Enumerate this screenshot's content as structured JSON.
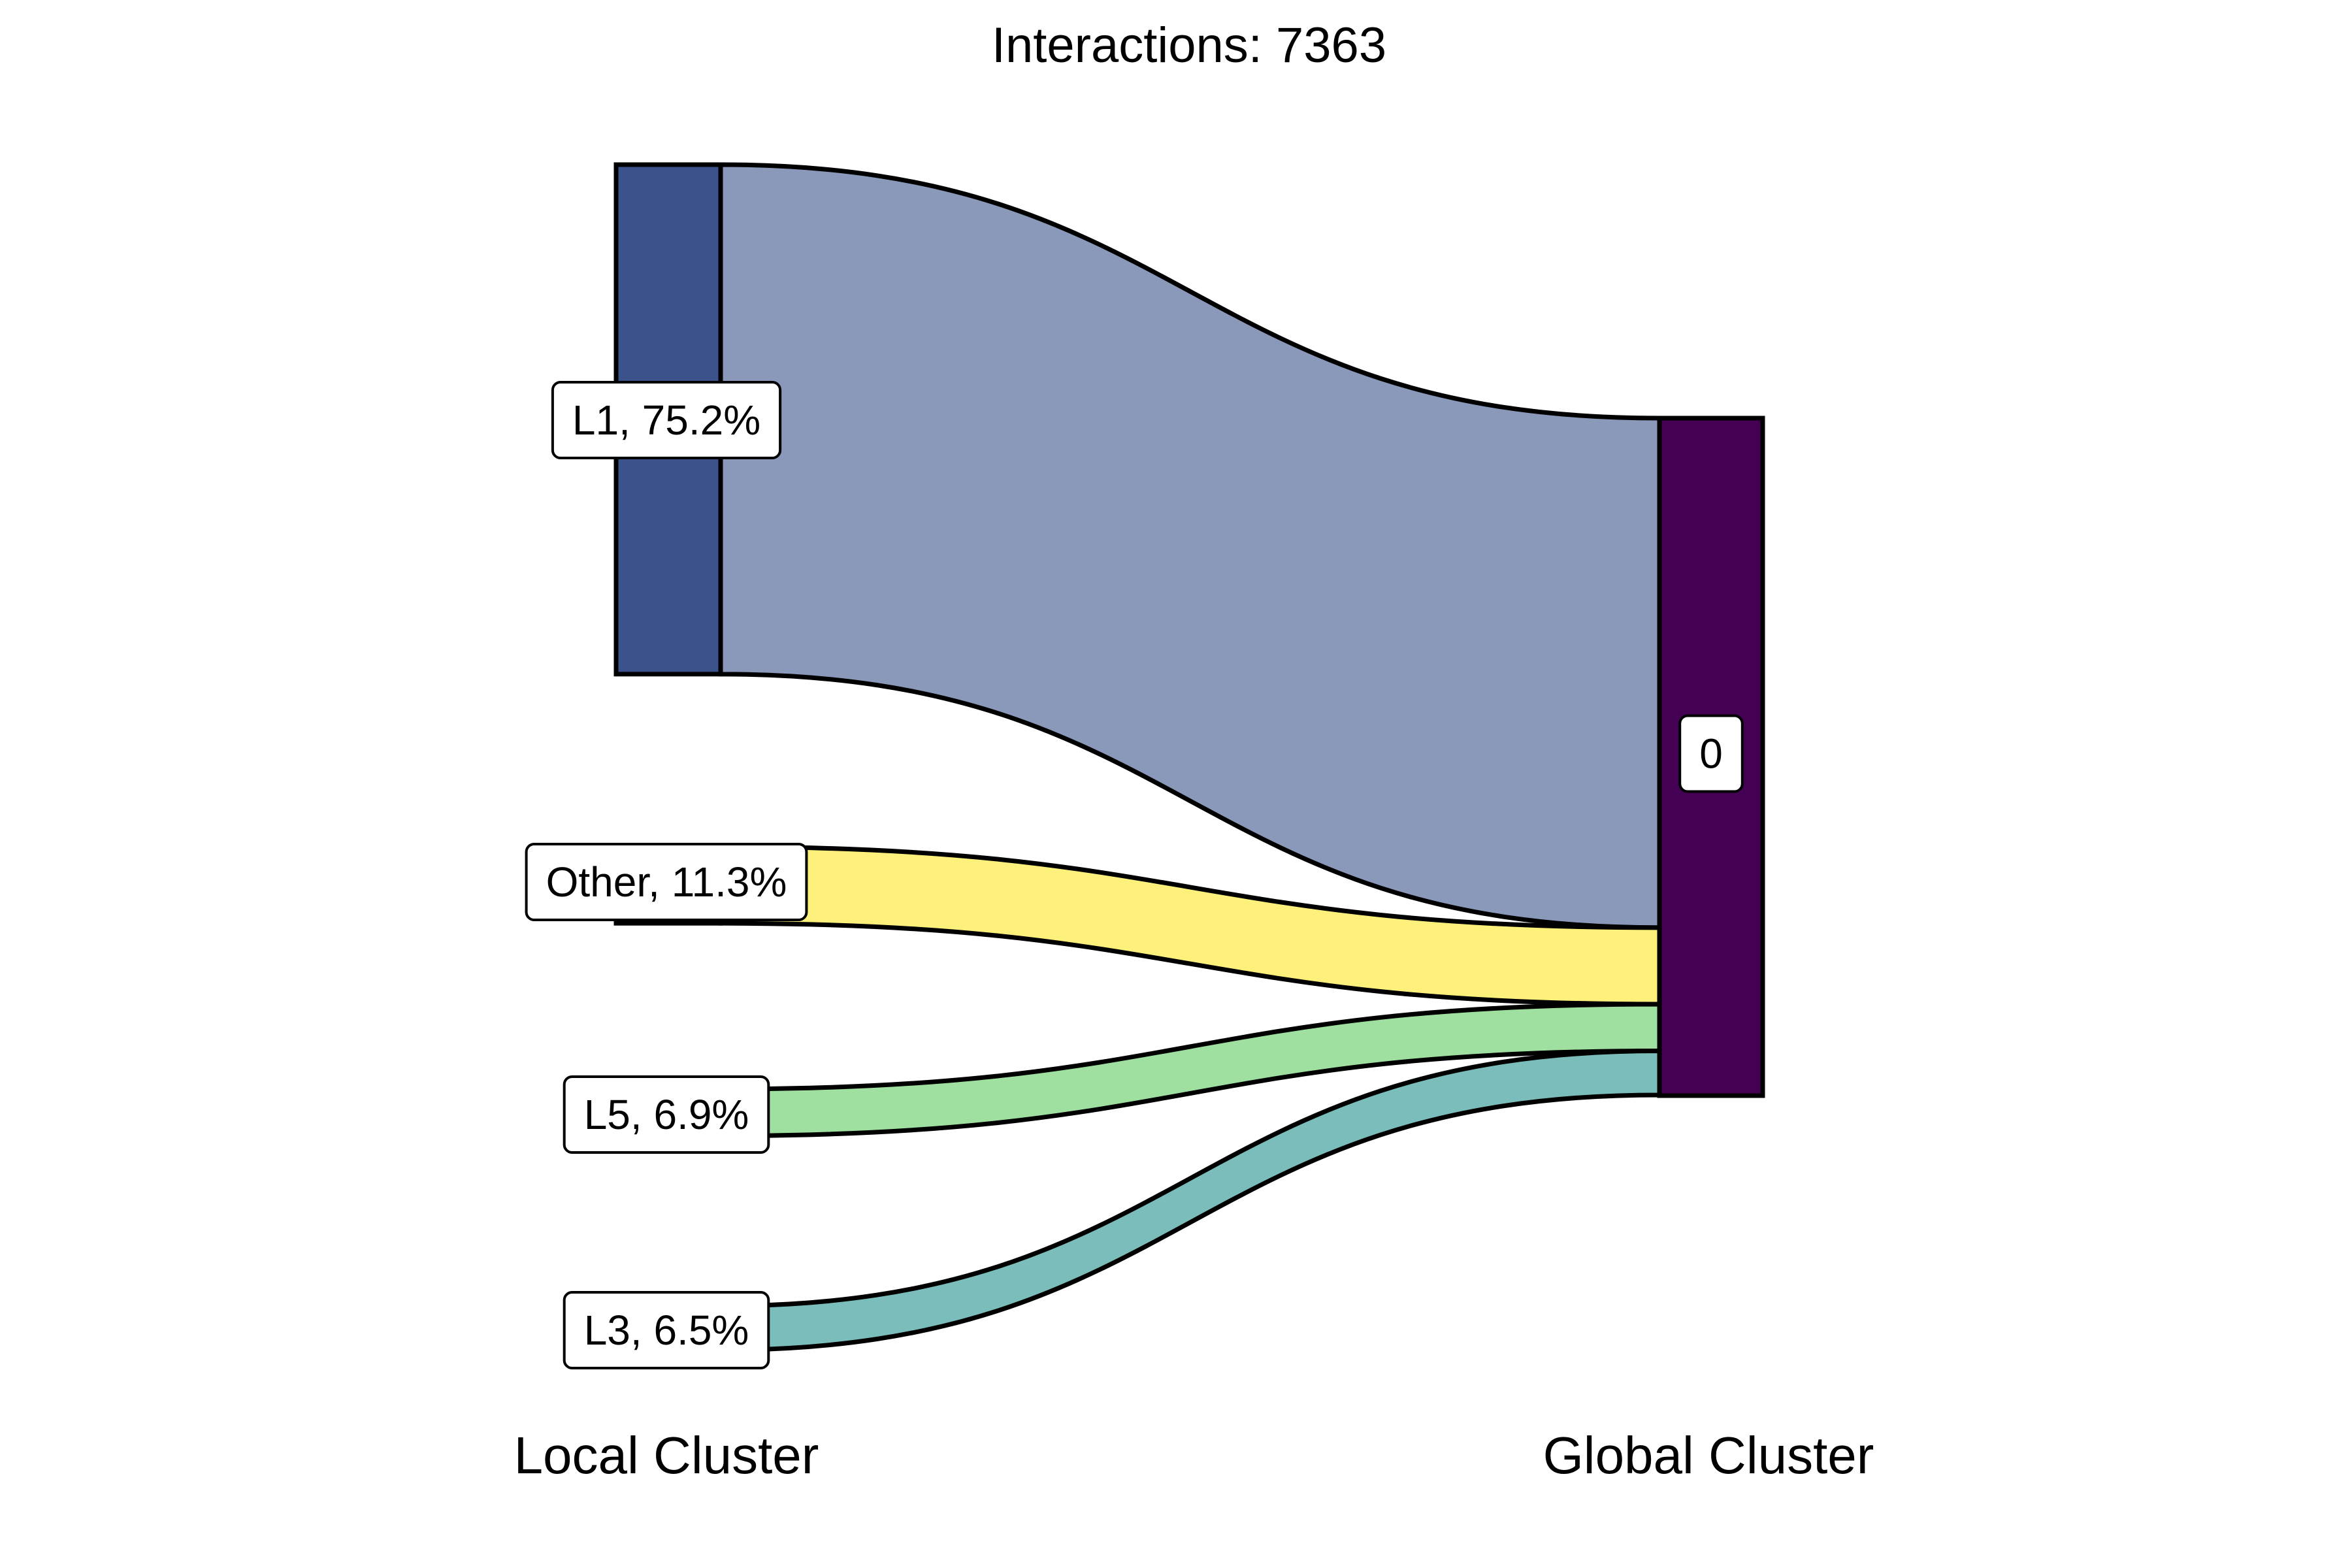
{
  "chart_data": {
    "type": "sankey",
    "title": "Interactions: 7363",
    "axis_labels": [
      "Local Cluster",
      "Global Cluster"
    ],
    "total": 7363,
    "source_nodes": [
      {
        "id": "L1",
        "label": "L1, 75.2%",
        "percent": 75.2,
        "node_color": "#3b528b",
        "flow_color": "#8a99b9"
      },
      {
        "id": "Other",
        "label": "Other, 11.3%",
        "percent": 11.3,
        "node_color": "#fde725",
        "flow_color": "#fdf17c"
      },
      {
        "id": "L5",
        "label": "L5, 6.9%",
        "percent": 6.9,
        "node_color": "#5ec962",
        "flow_color": "#9fdf9f"
      },
      {
        "id": "L3",
        "label": "L3, 6.5%",
        "percent": 6.5,
        "node_color": "#21918c",
        "flow_color": "#7abdba"
      }
    ],
    "target_nodes": [
      {
        "id": "0",
        "label": "0",
        "percent": 100,
        "node_color": "#440154"
      }
    ],
    "flows": [
      {
        "source": "L1",
        "target": "0",
        "percent": 75.2
      },
      {
        "source": "Other",
        "target": "0",
        "percent": 11.3
      },
      {
        "source": "L5",
        "target": "0",
        "percent": 6.9
      },
      {
        "source": "L3",
        "target": "0",
        "percent": 6.5
      }
    ]
  }
}
